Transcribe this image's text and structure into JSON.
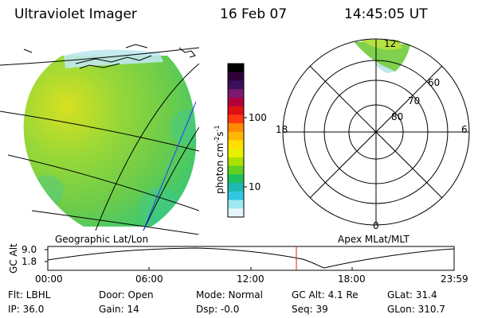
{
  "header": {
    "instrument": "Ultraviolet Imager",
    "date": "16 Feb 07",
    "time": "14:45:05 UT"
  },
  "image_panel": {
    "caption": "Geographic Lat/Lon"
  },
  "colorbar": {
    "label": "photon cm",
    "label_exp1": "-2",
    "label_s": "s",
    "label_exp2": "-1",
    "ticks": [
      "100",
      "10"
    ],
    "colors": [
      "#000000",
      "#30003a",
      "#3a0f5e",
      "#7a1a6e",
      "#b0003a",
      "#e01010",
      "#ff3a10",
      "#ff8a00",
      "#ffb800",
      "#ffe000",
      "#e8f000",
      "#a8e000",
      "#60d020",
      "#20c060",
      "#20b8b0",
      "#30c8e0",
      "#a0e8f0",
      "#e6f6f8"
    ]
  },
  "polar_panel": {
    "caption": "Apex MLat/MLT",
    "mlt_labels": [
      "12",
      "18",
      "6",
      "0"
    ],
    "mlat_labels": [
      "60",
      "70",
      "80"
    ]
  },
  "altitude_plot": {
    "ylabel": "GC Alt",
    "yticks": [
      "9.0",
      "1.8"
    ],
    "xticks": [
      "00:00",
      "06:00",
      "12:00",
      "18:00",
      "23:59"
    ],
    "marker_color": "#e02020"
  },
  "info": {
    "flt": "Flt: LBHL",
    "ip": "IP: 36.0",
    "door": "Door: Open",
    "gain": "Gain: 14",
    "mode": "Mode: Normal",
    "dsp": "Dsp:   -0.0",
    "gcalt": "GC Alt: 4.1 Re",
    "seq": "Seq: 39",
    "glat": "GLat:  31.4",
    "glon": "GLon: 310.7"
  }
}
